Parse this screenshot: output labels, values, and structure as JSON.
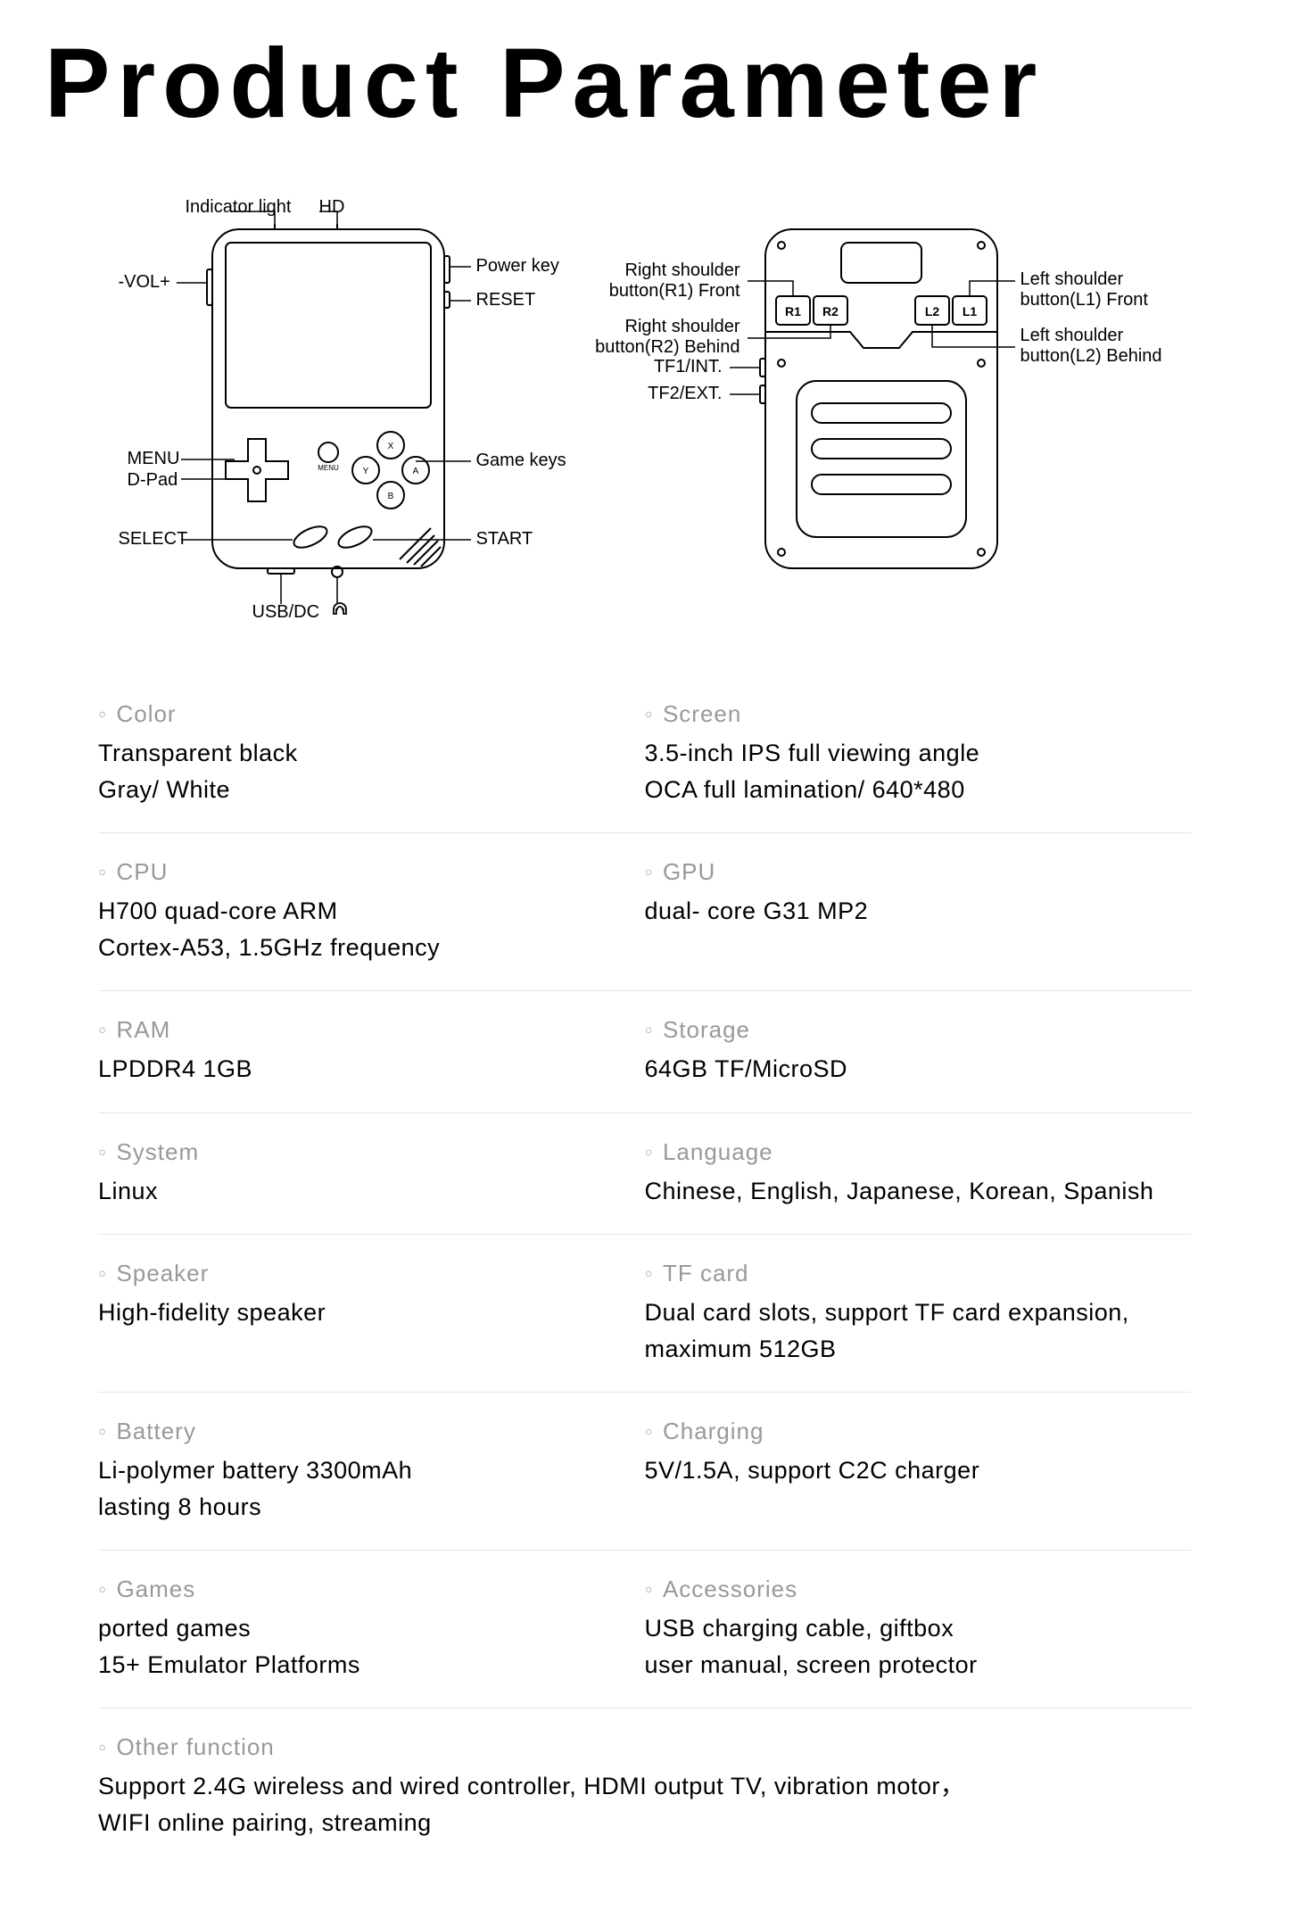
{
  "title": "Product Parameter",
  "colors": {
    "background": "#ffffff",
    "text": "#000000",
    "label": "#999999",
    "divider": "#e5e5e5",
    "stroke": "#000000"
  },
  "typography": {
    "title_fontsize": 110,
    "title_weight": 900,
    "title_letterspacing": 8,
    "label_fontsize": 26,
    "value_fontsize": 27,
    "callout_fontsize": 20
  },
  "diagram": {
    "front": {
      "callouts": {
        "indicator_light": "Indicator light",
        "hd": "HD",
        "vol": "-VOL+",
        "power_key": "Power key",
        "reset": "RESET",
        "menu": "MENU",
        "dpad": "D-Pad",
        "select": "SELECT",
        "game_keys": "Game keys",
        "start": "START",
        "usb_dc": "USB/DC",
        "headphone": "♫"
      }
    },
    "back": {
      "callouts": {
        "r1": "Right shoulder button(R1) Front",
        "r2": "Right shoulder button(R2) Behind",
        "l1": "Left shoulder button(L1) Front",
        "l2": "Left shoulder button(L2) Behind",
        "tf1": "TF1/INT.",
        "tf2": "TF2/EXT."
      },
      "button_labels": {
        "r1": "R1",
        "r2": "R2",
        "l2": "L2",
        "l1": "L1"
      }
    }
  },
  "specs": [
    [
      {
        "label": "Color",
        "value": "Transparent black\nGray/ White"
      },
      {
        "label": "Screen",
        "value": "3.5-inch IPS full viewing angle\nOCA full lamination/ 640*480"
      }
    ],
    [
      {
        "label": "CPU",
        "value": "H700 quad-core ARM\nCortex-A53, 1.5GHz frequency"
      },
      {
        "label": "GPU",
        "value": "dual- core G31 MP2"
      }
    ],
    [
      {
        "label": "RAM",
        "value": "LPDDR4  1GB"
      },
      {
        "label": "Storage",
        "value": "64GB TF/MicroSD"
      }
    ],
    [
      {
        "label": "System",
        "value": "Linux"
      },
      {
        "label": "Language",
        "value": "Chinese, English, Japanese, Korean, Spanish"
      }
    ],
    [
      {
        "label": "Speaker",
        "value": "High-fidelity speaker"
      },
      {
        "label": "TF card",
        "value": "Dual card slots, support TF card expansion, maximum 512GB"
      }
    ],
    [
      {
        "label": "Battery",
        "value": "Li-polymer battery 3300mAh\nlasting 8 hours"
      },
      {
        "label": "Charging",
        "value": "5V/1.5A, support C2C charger"
      }
    ],
    [
      {
        "label": "Games",
        "value": "ported games\n15+ Emulator Platforms"
      },
      {
        "label": "Accessories",
        "value": "USB charging cable, giftbox\nuser manual, screen protector"
      }
    ],
    [
      {
        "label": "Other function",
        "value": "Support 2.4G wireless and wired controller, HDMI output TV, vibration motor，\nWIFI online pairing, streaming",
        "full": true
      }
    ]
  ]
}
